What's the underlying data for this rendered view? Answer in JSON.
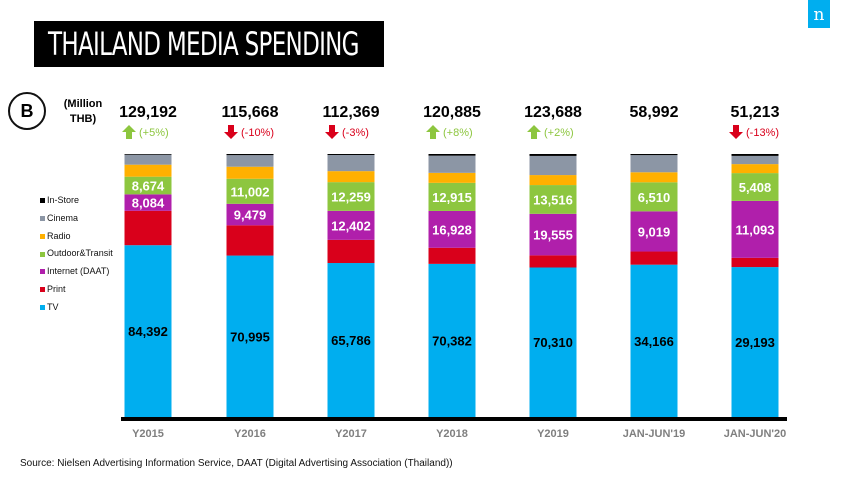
{
  "title": "THAILAND MEDIA SPENDING",
  "logo": "n",
  "badge": "B",
  "source": "Source: Nielsen Advertising Information Service, DAAT (Digital Advertising Association (Thailand))",
  "chart_data": {
    "type": "bar",
    "stacked": "100%",
    "unit_label": "(Million THB)",
    "categories": [
      "Y2015",
      "Y2016",
      "Y2017",
      "Y2018",
      "Y2019",
      "JAN-JUN'19",
      "JAN-JUN'20"
    ],
    "totals": [
      "129,192",
      "115,668",
      "112,369",
      "120,885",
      "123,688",
      "58,992",
      "51,213"
    ],
    "changes": [
      {
        "text": "(+5%)",
        "dir": "up"
      },
      {
        "text": "(-10%)",
        "dir": "down"
      },
      {
        "text": "(-3%)",
        "dir": "down"
      },
      {
        "text": "(+8%)",
        "dir": "up"
      },
      {
        "text": "(+2%)",
        "dir": "up"
      },
      {
        "text": "",
        "dir": ""
      },
      {
        "text": "(-13%)",
        "dir": "down"
      }
    ],
    "up_color": "#8dc63f",
    "down_color": "#d9001b",
    "series": [
      {
        "name": "TV",
        "color": "#00aeef",
        "values": [
          84392,
          70995,
          65786,
          70382,
          70310,
          34166,
          29193
        ],
        "labeled": true
      },
      {
        "name": "Print",
        "color": "#d9001b",
        "values": [
          16900,
          13300,
          9900,
          7400,
          5700,
          2950,
          1800
        ],
        "labeled": false
      },
      {
        "name": "Internet (DAAT)",
        "color": "#b01fab",
        "values": [
          8084,
          9479,
          12402,
          16928,
          19555,
          9019,
          11093
        ],
        "labeled": true
      },
      {
        "name": "Outdoor&Transit",
        "color": "#8dc63f",
        "values": [
          8674,
          11002,
          12259,
          12915,
          13516,
          6510,
          5408
        ],
        "labeled": true
      },
      {
        "name": "Radio",
        "color": "#ffb000",
        "values": [
          5900,
          5300,
          4700,
          4600,
          4700,
          2250,
          1750
        ],
        "labeled": false
      },
      {
        "name": "Cinema",
        "color": "#8c96a5",
        "values": [
          4900,
          5100,
          6900,
          7900,
          9000,
          3850,
          1600
        ],
        "labeled": false
      },
      {
        "name": "In-Store",
        "color": "#000000",
        "values": [
          342,
          492,
          422,
          760,
          907,
          247,
          369
        ],
        "labeled": false
      }
    ],
    "legend_position": "left",
    "grid": false
  }
}
